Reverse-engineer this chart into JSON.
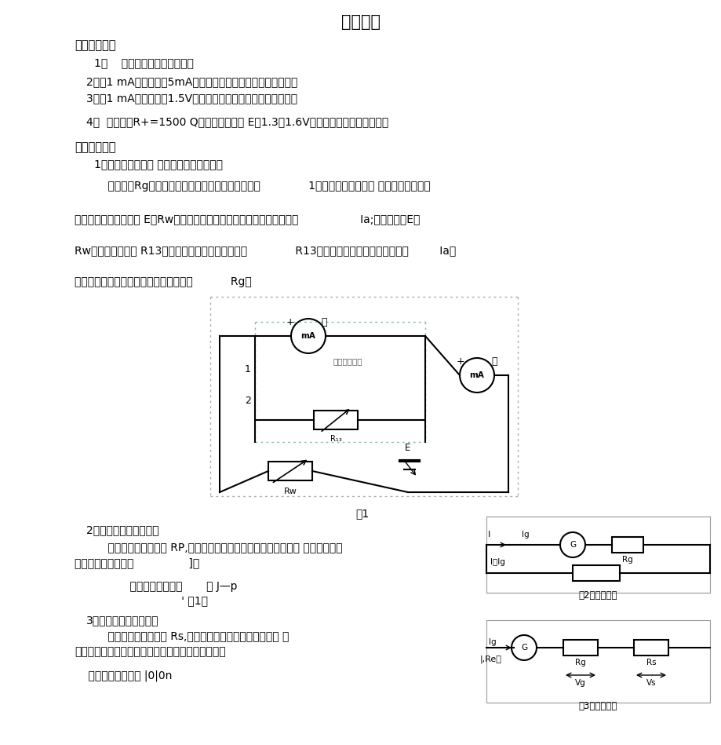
{
  "title": "实验报告",
  "section1_header": "【实验目的】",
  "item1": "1、    测量表头内阻及满度电流",
  "item2": "2、将1 mA表头改装成5mA的电流表，学会校准电流表基本方法",
  "item3": "3、将1 mA表头改装成1.5V的电压表，学会校准电压表基本方法",
  "item4": "4、  设计一个R+=1500 Q的欧姆表，要求 E在1.3～1.6V范围内使用能调零（选做）",
  "section2_header": "【实验原理】",
  "p1": "1、表头的主要参数 （量程和内阻）的测定",
  "p2": "    测量内阻Rg的方法很多，本实验采用替代法。如图              1所示。当被改电流计 （表头）接在电路",
  "p3": "中时，选择适当的电压 E和Rw值使表头满偏，记下此时标准电流表的读数                  Ia;不改变电压E和",
  "p4": "Rw的值，用电阻箱 R13替代被测电流计，调节电阻箱              R13的阻值使标准电流表的读数仍为         Ia，",
  "p5": "此时电阻箱的阻值即为被测电流计的内阻           Rg。",
  "p6": "2、毫安表改装成电流表",
  "p7": "    微安表并联分流电阻 RP,使被测电流大部分从分流电阻流过，表 头仍保持原来",
  "p8": "允许通过的最大电流                ]。",
  "p9": "    并联分流电阻大小       口 J—p",
  "p10": "                   ' （1）",
  "p11": "3、毫安表改装成电压表",
  "p12": "    微安表串联分压电阻 Rs,使大部分电压降落在串联的分压 电",
  "p13": "压上，而微安表上的电压降仍不超过原来的电压量程",
  "p14": "    串联分压电压大小 |0|0n",
  "fig1_caption": "图1",
  "fig2_caption": "图2电流表改装",
  "fig3_caption": "图3电压表改装",
  "bg_color": "#ffffff",
  "text_color": "#000000",
  "font_size_title": 15,
  "font_size_body": 10,
  "font_size_section": 10.5
}
